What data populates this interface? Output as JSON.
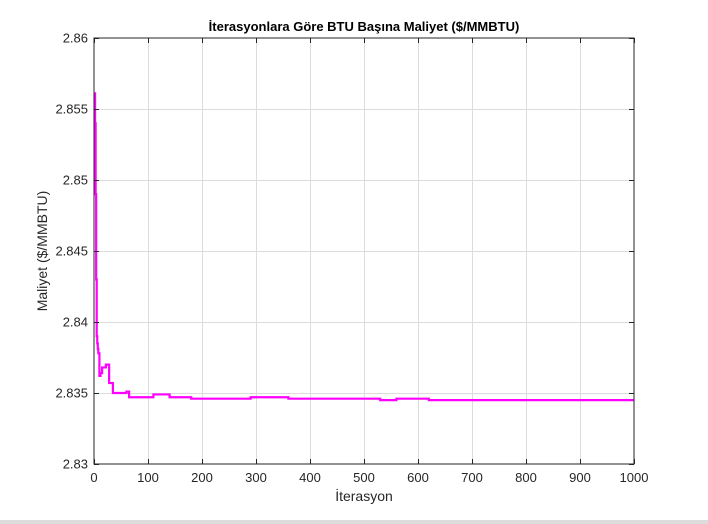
{
  "chart_data": {
    "type": "line",
    "title": "İterasyonlara Göre BTU Başına Maliyet ($/MMBTU)",
    "xlabel": "İterasyon",
    "ylabel": "Maliyet ($/MMBTU)",
    "xlim": [
      0,
      1000
    ],
    "ylim": [
      2.83,
      2.86
    ],
    "xticks": [
      0,
      100,
      200,
      300,
      400,
      500,
      600,
      700,
      800,
      900,
      1000
    ],
    "yticks": [
      2.83,
      2.835,
      2.84,
      2.845,
      2.85,
      2.855,
      2.86
    ],
    "ytick_labels": [
      "2.83",
      "2.835",
      "2.84",
      "2.845",
      "2.85",
      "2.855",
      "2.86"
    ],
    "grid": true,
    "line_color": "#ff00ff",
    "series": [
      {
        "step": true,
        "x": [
          1,
          2,
          3,
          4,
          5,
          6,
          7,
          8,
          10,
          12,
          15,
          18,
          22,
          28,
          35,
          60,
          65,
          110,
          140,
          170,
          180,
          280,
          290,
          360,
          530,
          560,
          620,
          1000
        ],
        "y": [
          2.8561,
          2.854,
          2.849,
          2.843,
          2.839,
          2.8385,
          2.8381,
          2.8378,
          2.8362,
          2.8364,
          2.8368,
          2.8368,
          2.837,
          2.8357,
          2.835,
          2.8351,
          2.8347,
          2.8349,
          2.8347,
          2.8347,
          2.8346,
          2.8346,
          2.8347,
          2.8346,
          2.8345,
          2.8346,
          2.8345,
          2.8345
        ]
      }
    ]
  }
}
